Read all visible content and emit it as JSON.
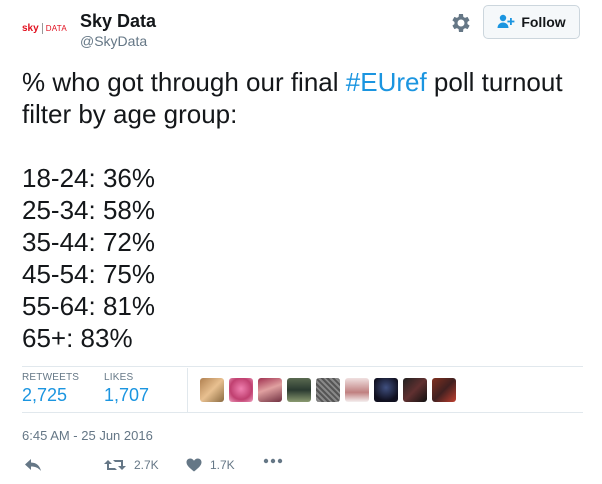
{
  "account": {
    "avatar_brand": "sky",
    "avatar_sub": "DATA",
    "name": "Sky Data",
    "handle": "@SkyData",
    "follow_label": "Follow"
  },
  "tweet": {
    "text_before": "% who got through our final ",
    "hashtag": "#EUref",
    "text_after": " poll turnout filter by age group:",
    "lines": [
      "18-24: 36%",
      "25-34: 58%",
      "35-44: 72%",
      "45-54: 75%",
      "55-64: 81%",
      "65+: 83%"
    ]
  },
  "stats": {
    "retweets_label": "RETWEETS",
    "retweets_value": "2,725",
    "likes_label": "LIKES",
    "likes_value": "1,707"
  },
  "timestamp": "6:45 AM - 25 Jun 2016",
  "actions": {
    "retweet_count": "2.7K",
    "like_count": "1.7K"
  },
  "colors": {
    "brand_red": "#e10f1e",
    "link_blue": "#1b95e0",
    "muted": "#657786"
  },
  "icons": [
    "gear-icon",
    "follow-person-plus-icon",
    "reply-icon",
    "retweet-icon",
    "heart-icon",
    "more-icon"
  ]
}
